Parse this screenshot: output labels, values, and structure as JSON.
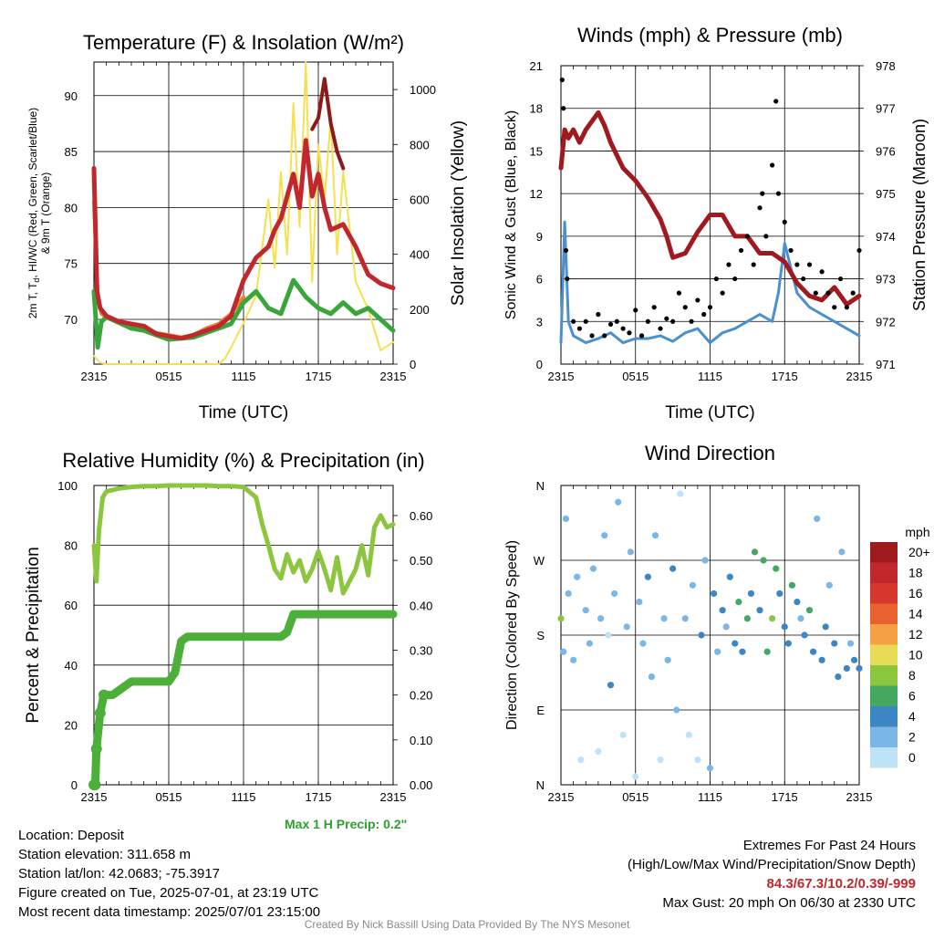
{
  "credit": "Created By Nick Bassill Using Data Provided By The NYS Mesonet",
  "info": {
    "location": "Location: Deposit",
    "elevation": "Station elevation: 311.658 m",
    "latlon": "Station lat/lon: 42.0683; -75.3917",
    "created": "Figure created on Tue, 2025-07-01, at 23:19 UTC",
    "recent": "Most recent data timestamp: 2025/07/01 23:15:00"
  },
  "extremes": {
    "title": "Extremes For Past 24 Hours",
    "subtitle": "(High/Low/Max Wind/Precipitation/Snow Depth)",
    "values": "84.3/67.3/10.2/0.39/-999",
    "gust": "Max Gust: 20 mph On 06/30 at 2330 UTC"
  },
  "max_precip": "Max 1 H Precip: 0.2\"",
  "time_ticks": [
    "2315",
    "0515",
    "1115",
    "1715",
    "2315"
  ],
  "colors": {
    "temperature": "#c0282d",
    "dewpoint": "#3aa53a",
    "heat_index": "#e26a2c",
    "temp_9m": "#f08030",
    "solar": "#f5e050",
    "wind": "#4a90d0",
    "gust": "#000000",
    "pressure": "#a0191f",
    "rh": "#8cc63f",
    "precip": "#4caf3a"
  },
  "chart_data": [
    {
      "type": "line",
      "title": "Temperature (F) & Insolation (W/m²)",
      "xlabel": "Time (UTC)",
      "ylabel_left": [
        "2m T, T",
        "d",
        ", HI/WC (Red, Green, Scarlet/Blue)",
        "& 9m T (Orange)"
      ],
      "ylabel_right": "Solar Insolation (Yellow)",
      "x_ticks": [
        "2315",
        "0515",
        "1115",
        "1715",
        "2315"
      ],
      "y_left_ticks": [
        70,
        75,
        80,
        85,
        90
      ],
      "y_left_lim": [
        66,
        93
      ],
      "y_right_ticks": [
        0,
        200,
        400,
        600,
        800,
        1000
      ],
      "y_right_lim": [
        0,
        1100
      ],
      "x_hours_range": [
        0,
        24
      ],
      "series": [
        {
          "name": "2m T (Red)",
          "axis": "left",
          "x": [
            0,
            0.25,
            0.5,
            1,
            2,
            3,
            4,
            5,
            6,
            7,
            8,
            9,
            10,
            11,
            12,
            13,
            14,
            14.5,
            15,
            16,
            16.5,
            17,
            17.5,
            18,
            18.5,
            19,
            20,
            21,
            22,
            23,
            24
          ],
          "values": [
            83.5,
            72.5,
            71,
            70.3,
            69.8,
            69.6,
            69.4,
            68.7,
            68.5,
            68.3,
            68.6,
            69.0,
            69.4,
            70.3,
            73.5,
            75.5,
            76.5,
            78,
            79,
            83,
            80,
            86,
            81,
            83,
            80,
            78,
            78.5,
            76.5,
            74,
            73.2,
            72.8
          ]
        },
        {
          "name": "2m Td (Green)",
          "axis": "left",
          "x": [
            0,
            0.3,
            0.6,
            1,
            2,
            3,
            4,
            5,
            6,
            7,
            8,
            9,
            10,
            11,
            12,
            13,
            14,
            15,
            16,
            17,
            18,
            19,
            20,
            21,
            22,
            23,
            24
          ],
          "values": [
            72.5,
            67.5,
            69.8,
            70.2,
            69.7,
            69.2,
            69.0,
            68.6,
            68.2,
            68.3,
            68.4,
            68.8,
            69.2,
            69.6,
            71.5,
            72.5,
            71,
            70.5,
            73.5,
            72,
            71,
            70.5,
            71.5,
            70.5,
            71,
            70,
            69
          ]
        },
        {
          "name": "HI/WC (Scarlet/Blue)",
          "axis": "left",
          "x": [
            17.5,
            18,
            18.5,
            19,
            19.5,
            20
          ],
          "values": [
            87,
            88,
            91.5,
            87.5,
            85,
            83.5
          ]
        },
        {
          "name": "9m T (Orange)",
          "axis": "left",
          "x": [
            0,
            0.3,
            0.6,
            1,
            2,
            3,
            4,
            5,
            6,
            7,
            8,
            9,
            10,
            11,
            12
          ],
          "values": [
            80.5,
            72,
            70.5,
            70.2,
            69.8,
            69.6,
            69.3,
            68.8,
            68.6,
            68.4,
            68.6,
            69.2,
            69.6,
            70.5,
            72
          ]
        },
        {
          "name": "Solar Insolation (Yellow)",
          "axis": "right",
          "x": [
            0,
            0.5,
            1,
            2,
            3,
            4,
            5,
            6,
            7,
            8,
            9,
            10,
            10.5,
            11,
            12,
            13,
            14,
            14.5,
            15,
            15.5,
            16,
            16.5,
            17,
            17.5,
            18,
            18.5,
            19,
            19.5,
            20,
            21,
            22,
            23,
            24
          ],
          "values": [
            30,
            5,
            0,
            0,
            0,
            0,
            0,
            0,
            0,
            0,
            0,
            0,
            20,
            60,
            150,
            250,
            600,
            350,
            700,
            400,
            950,
            500,
            1100,
            300,
            800,
            600,
            900,
            400,
            700,
            300,
            200,
            50,
            80
          ]
        }
      ]
    },
    {
      "type": "line",
      "title": "Winds (mph) & Pressure (mb)",
      "xlabel": "Time (UTC)",
      "ylabel_left": "Sonic Wind & Gust (Blue, Black)",
      "ylabel_right": "Station Pressure (Maroon)",
      "x_ticks": [
        "2315",
        "0515",
        "1115",
        "1715",
        "2315"
      ],
      "y_left_ticks": [
        0,
        3,
        6,
        9,
        12,
        15,
        18,
        21
      ],
      "y_left_lim": [
        0,
        21
      ],
      "y_right_ticks": [
        971,
        972,
        973,
        974,
        975,
        976,
        977,
        978
      ],
      "y_right_lim": [
        971,
        978
      ],
      "x_hours_range": [
        0,
        24
      ],
      "series": [
        {
          "name": "Sonic Wind (Blue)",
          "axis": "left",
          "x": [
            0,
            0.3,
            0.6,
            1,
            2,
            3,
            4,
            5,
            6,
            7,
            8,
            9,
            10,
            11,
            12,
            13,
            14,
            15,
            16,
            17,
            17.5,
            18,
            19,
            20,
            21,
            22,
            23,
            24
          ],
          "values": [
            1.5,
            10,
            3,
            2,
            1.5,
            1.8,
            2.2,
            1.5,
            1.8,
            1.8,
            2,
            1.6,
            2.2,
            2.5,
            1.5,
            2.2,
            2.5,
            3,
            3.5,
            3,
            5,
            8.5,
            5,
            4,
            3.5,
            3,
            2.5,
            2
          ]
        },
        {
          "name": "Pressure (Maroon)",
          "axis": "right",
          "x": [
            0,
            0.3,
            0.6,
            1,
            1.5,
            2,
            3,
            3.5,
            4,
            5,
            6,
            7,
            8,
            8.5,
            9,
            10,
            11,
            12,
            13,
            14,
            15,
            16,
            17,
            18,
            19,
            20,
            21,
            22,
            23,
            24
          ],
          "values": [
            975.6,
            976.5,
            976.3,
            976.5,
            976.2,
            976.5,
            976.9,
            976.6,
            976.2,
            975.6,
            975.3,
            974.9,
            974.4,
            974.0,
            973.5,
            973.6,
            974.1,
            974.5,
            974.5,
            974.0,
            974.0,
            973.6,
            973.6,
            973.4,
            972.9,
            972.6,
            972.5,
            972.8,
            972.4,
            972.6
          ]
        },
        {
          "name": "Gust (Black)",
          "axis": "left",
          "mode": "markers",
          "x": [
            0.1,
            0.2,
            0.4,
            0.5,
            1,
            1.5,
            2,
            2.5,
            3,
            3.5,
            4,
            4.5,
            5,
            5.5,
            6,
            6.5,
            7,
            7.5,
            8,
            8.5,
            9,
            9.5,
            10,
            10.5,
            11,
            11.5,
            12,
            12.5,
            13,
            13.5,
            14,
            14.5,
            15,
            15.5,
            16,
            16.2,
            16.5,
            17,
            17.3,
            17.5,
            18,
            18.5,
            19,
            19.5,
            20,
            20.5,
            21,
            21.5,
            22,
            22.5,
            23,
            23.5,
            24
          ],
          "values": [
            20,
            18,
            8,
            6,
            3,
            2.5,
            3,
            2,
            3.5,
            2,
            2.8,
            3,
            2.5,
            2.2,
            3.8,
            2,
            3,
            4,
            2.5,
            3.2,
            3,
            5,
            4,
            3,
            4.5,
            3.5,
            4,
            6,
            5,
            7,
            6,
            8,
            9,
            7,
            11,
            12,
            9,
            14,
            18.5,
            12,
            10,
            8,
            7,
            6,
            7,
            5,
            6.5,
            5,
            4,
            6,
            4,
            5,
            8
          ]
        }
      ]
    },
    {
      "type": "line",
      "title": "Relative Humidity (%) & Precipitation (in)",
      "xlabel": "",
      "ylabel_left": "Percent & Precipitation",
      "x_ticks": [
        "2315",
        "0515",
        "1115",
        "1715",
        "2315"
      ],
      "y_left_ticks": [
        0,
        20,
        40,
        60,
        80,
        100
      ],
      "y_left_lim": [
        0,
        100
      ],
      "y_right_ticks": [
        "0.00",
        "0.10",
        "0.20",
        "0.30",
        "0.40",
        "0.50",
        "0.60"
      ],
      "y_right_lim": [
        0,
        0.667
      ],
      "x_hours_range": [
        0,
        24
      ],
      "series": [
        {
          "name": "Relative Humidity",
          "axis": "left",
          "x": [
            0,
            0.2,
            0.4,
            0.7,
            1,
            2,
            3,
            4,
            5,
            6,
            7,
            8,
            9,
            10,
            11,
            12,
            13,
            13.5,
            14,
            14.5,
            15,
            15.5,
            16,
            16.5,
            17,
            17.5,
            18,
            18.5,
            19,
            19.5,
            20,
            20.5,
            21,
            21.5,
            22,
            22.5,
            23,
            23.5,
            24
          ],
          "values": [
            80,
            68,
            85,
            96,
            98,
            99,
            99.5,
            99.8,
            99.8,
            100,
            100,
            100,
            100,
            99.8,
            99.8,
            99.5,
            96,
            87,
            80,
            72,
            69,
            77,
            71,
            75,
            68,
            72,
            78,
            72,
            65,
            76,
            64,
            68,
            72,
            80,
            70,
            86,
            90,
            86,
            87
          ]
        },
        {
          "name": "Precipitation",
          "axis": "right",
          "x": [
            0,
            0.1,
            0.2,
            0.5,
            0.8,
            1,
            1.5,
            2,
            3,
            4,
            5,
            6,
            6.5,
            7,
            7.5,
            8,
            9,
            10,
            11,
            12,
            13,
            14,
            15,
            15.5,
            16,
            17,
            18,
            19,
            20,
            21,
            22,
            23,
            24
          ],
          "values": [
            0,
            0,
            0.08,
            0.16,
            0.2,
            0.2,
            0.2,
            0.21,
            0.23,
            0.23,
            0.23,
            0.23,
            0.25,
            0.32,
            0.33,
            0.33,
            0.33,
            0.33,
            0.33,
            0.33,
            0.33,
            0.33,
            0.33,
            0.34,
            0.38,
            0.38,
            0.38,
            0.38,
            0.38,
            0.38,
            0.38,
            0.38,
            0.38
          ]
        }
      ]
    },
    {
      "type": "scatter",
      "title": "Wind Direction",
      "ylabel_left": "Direction (Colored By Speed)",
      "x_ticks": [
        "2315",
        "0515",
        "1115",
        "1715",
        "2315"
      ],
      "y_ticks": [
        "N",
        "E",
        "S",
        "W",
        "N"
      ],
      "y_lim": [
        0,
        360
      ],
      "x_hours_range": [
        0,
        24
      ],
      "colorbar_title": "mph",
      "colorbar_labels": [
        "20+",
        "18",
        "16",
        "14",
        "12",
        "10",
        "8",
        "6",
        "4",
        "2",
        "0"
      ],
      "colorbar_colors": [
        "#9e1a1f",
        "#c0282d",
        "#d6372c",
        "#ea6130",
        "#f6a046",
        "#e8db55",
        "#8cc63f",
        "#44a860",
        "#3c86c4",
        "#7ab6e6",
        "#c0e2f7"
      ],
      "points": {
        "x": [
          0,
          0.2,
          0.4,
          0.6,
          1,
          1.3,
          1.6,
          2,
          2.3,
          2.6,
          3,
          3.2,
          3.5,
          3.8,
          4,
          4.3,
          4.6,
          5,
          5.3,
          5.6,
          6,
          6.3,
          6.6,
          7,
          7.3,
          7.6,
          8,
          8.3,
          8.6,
          9,
          9.3,
          9.6,
          10,
          10.3,
          10.6,
          11,
          11.3,
          11.6,
          12,
          12.3,
          12.6,
          13,
          13.3,
          13.6,
          14,
          14.3,
          14.6,
          15,
          15.3,
          15.6,
          16,
          16.3,
          16.6,
          17,
          17.3,
          17.6,
          18,
          18.3,
          18.6,
          19,
          19.3,
          19.6,
          20,
          20.3,
          20.6,
          21,
          21.3,
          21.6,
          22,
          22.3,
          22.6,
          23,
          23.3,
          23.6,
          24
        ],
        "dir": [
          200,
          160,
          320,
          230,
          150,
          250,
          30,
          210,
          170,
          260,
          40,
          200,
          300,
          180,
          120,
          230,
          340,
          60,
          190,
          280,
          10,
          220,
          170,
          250,
          130,
          300,
          30,
          200,
          150,
          260,
          90,
          350,
          200,
          60,
          240,
          30,
          180,
          270,
          20,
          230,
          160,
          210,
          190,
          250,
          170,
          220,
          160,
          200,
          230,
          280,
          210,
          270,
          160,
          200,
          260,
          230,
          190,
          170,
          240,
          220,
          200,
          180,
          210,
          160,
          320,
          150,
          190,
          240,
          170,
          130,
          280,
          140,
          170,
          150,
          140
        ],
        "speed": [
          8,
          2,
          2,
          1,
          2,
          1,
          0,
          1,
          2,
          1,
          0,
          2,
          1,
          0,
          3,
          1,
          2,
          0,
          2,
          1,
          0,
          2,
          1,
          3,
          2,
          1,
          0,
          2,
          1,
          3,
          2,
          0,
          1,
          0,
          2,
          0,
          3,
          2,
          1,
          4,
          2,
          3,
          2,
          4,
          3,
          5,
          4,
          6,
          4,
          5,
          4,
          5,
          6,
          7,
          6,
          4,
          3,
          4,
          5,
          3,
          2,
          4,
          6,
          3,
          2,
          4,
          3,
          2,
          4,
          3,
          2,
          3,
          2,
          3,
          4
        ]
      }
    }
  ]
}
